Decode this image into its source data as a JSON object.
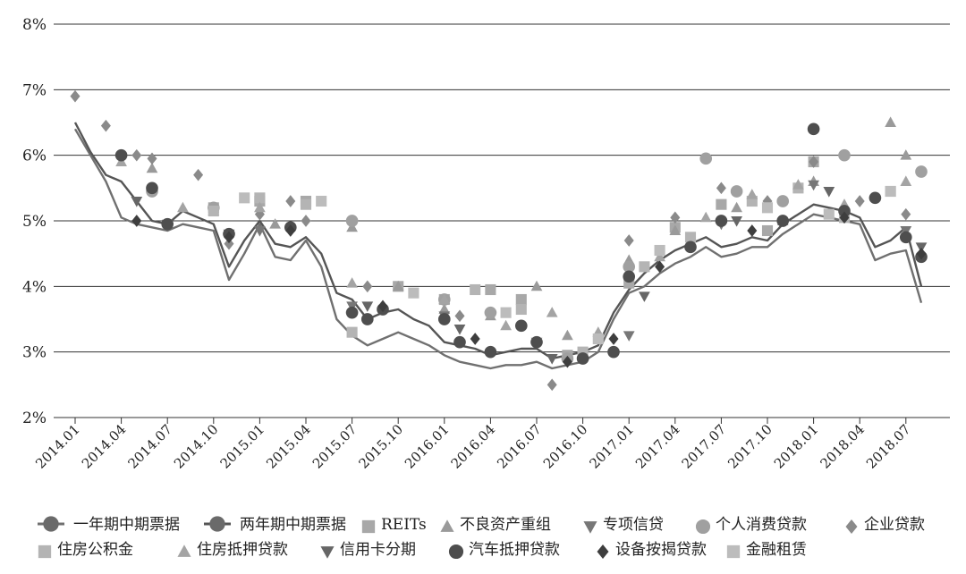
{
  "chart_data": {
    "type": "line",
    "title": "",
    "xlabel": "",
    "ylabel": "",
    "ylim": [
      2,
      8
    ],
    "grid": "horizontal",
    "legend_position": "bottom",
    "y_ticks": [
      "2%",
      "3%",
      "4%",
      "5%",
      "6%",
      "7%",
      "8%"
    ],
    "x_ticks": [
      "2014.01",
      "2014.04",
      "2014.07",
      "2014.10",
      "2015.01",
      "2015.04",
      "2015.07",
      "2015.10",
      "2016.01",
      "2016.04",
      "2016.07",
      "2016.10",
      "2017.01",
      "2017.04",
      "2017.07",
      "2017.10",
      "2018.01",
      "2018.04",
      "2018.07"
    ],
    "series": [
      {
        "name": "一年期中期票据",
        "kind": "line",
        "marker": "none",
        "color": "#707070",
        "x": [
          "2014.01",
          "2014.02",
          "2014.03",
          "2014.04",
          "2014.05",
          "2014.06",
          "2014.07",
          "2014.08",
          "2014.09",
          "2014.10",
          "2014.11",
          "2014.12",
          "2015.01",
          "2015.02",
          "2015.03",
          "2015.04",
          "2015.05",
          "2015.06",
          "2015.07",
          "2015.08",
          "2015.09",
          "2015.10",
          "2015.11",
          "2015.12",
          "2016.01",
          "2016.02",
          "2016.03",
          "2016.04",
          "2016.05",
          "2016.06",
          "2016.07",
          "2016.08",
          "2016.09",
          "2016.10",
          "2016.11",
          "2016.12",
          "2017.01",
          "2017.02",
          "2017.03",
          "2017.04",
          "2017.05",
          "2017.06",
          "2017.07",
          "2017.08",
          "2017.09",
          "2017.10",
          "2017.11",
          "2017.12",
          "2018.01",
          "2018.02",
          "2018.03",
          "2018.04",
          "2018.05",
          "2018.06",
          "2018.07",
          "2018.08"
        ],
        "values": [
          6.4,
          6.0,
          5.6,
          5.05,
          4.95,
          4.9,
          4.85,
          4.95,
          4.9,
          4.85,
          4.1,
          4.5,
          4.95,
          4.45,
          4.4,
          4.7,
          4.3,
          3.5,
          3.25,
          3.1,
          3.2,
          3.3,
          3.2,
          3.1,
          2.95,
          2.85,
          2.8,
          2.75,
          2.8,
          2.8,
          2.85,
          2.75,
          2.8,
          2.85,
          3.0,
          3.5,
          3.9,
          4.0,
          4.2,
          4.35,
          4.45,
          4.6,
          4.45,
          4.5,
          4.6,
          4.6,
          4.8,
          4.95,
          5.1,
          5.05,
          5.0,
          4.95,
          4.4,
          4.5,
          4.55,
          3.75
        ]
      },
      {
        "name": "两年期中期票据",
        "kind": "line",
        "marker": "none",
        "color": "#555555",
        "x": [
          "2014.01",
          "2014.02",
          "2014.03",
          "2014.04",
          "2014.05",
          "2014.06",
          "2014.07",
          "2014.08",
          "2014.09",
          "2014.10",
          "2014.11",
          "2014.12",
          "2015.01",
          "2015.02",
          "2015.03",
          "2015.04",
          "2015.05",
          "2015.06",
          "2015.07",
          "2015.08",
          "2015.09",
          "2015.10",
          "2015.11",
          "2015.12",
          "2016.01",
          "2016.02",
          "2016.03",
          "2016.04",
          "2016.05",
          "2016.06",
          "2016.07",
          "2016.08",
          "2016.09",
          "2016.10",
          "2016.11",
          "2016.12",
          "2017.01",
          "2017.02",
          "2017.03",
          "2017.04",
          "2017.05",
          "2017.06",
          "2017.07",
          "2017.08",
          "2017.09",
          "2017.10",
          "2017.11",
          "2017.12",
          "2018.01",
          "2018.02",
          "2018.03",
          "2018.04",
          "2018.05",
          "2018.06",
          "2018.07",
          "2018.08"
        ],
        "values": [
          6.5,
          6.05,
          5.7,
          5.6,
          5.3,
          5.0,
          4.95,
          5.15,
          5.05,
          4.95,
          4.3,
          4.7,
          5.0,
          4.65,
          4.6,
          4.75,
          4.5,
          3.9,
          3.8,
          3.5,
          3.6,
          3.65,
          3.5,
          3.4,
          3.15,
          3.1,
          3.05,
          2.95,
          3.0,
          3.05,
          3.05,
          2.9,
          2.95,
          3.0,
          3.1,
          3.6,
          3.95,
          4.2,
          4.4,
          4.55,
          4.65,
          4.75,
          4.6,
          4.65,
          4.75,
          4.7,
          4.95,
          5.1,
          5.25,
          5.2,
          5.15,
          5.05,
          4.6,
          4.7,
          4.9,
          4.0
        ]
      },
      {
        "name": "REITs",
        "kind": "scatter",
        "marker": "square",
        "color": "#a8a8a8",
        "x": [
          "2014.10",
          "2015.01",
          "2015.04",
          "2015.10",
          "2016.01",
          "2016.04",
          "2016.06",
          "2016.09",
          "2017.01",
          "2017.04",
          "2017.07",
          "2017.10",
          "2018.01"
        ],
        "values": [
          5.2,
          5.3,
          5.3,
          4.0,
          3.8,
          3.95,
          3.8,
          2.95,
          4.05,
          4.9,
          5.25,
          4.85,
          5.9
        ]
      },
      {
        "name": "不良资产重组",
        "kind": "scatter",
        "marker": "triangle-up",
        "color": "#9a9a9a",
        "x": [
          "2014.06",
          "2014.10",
          "2015.02",
          "2015.07",
          "2015.10",
          "2016.01",
          "2016.04",
          "2016.07",
          "2016.09",
          "2017.01",
          "2017.04",
          "2017.08",
          "2017.11",
          "2018.01",
          "2018.06",
          "2018.07"
        ],
        "values": [
          5.8,
          5.15,
          4.95,
          4.9,
          4.0,
          3.65,
          3.55,
          4.0,
          3.25,
          4.4,
          4.85,
          5.2,
          5.0,
          5.6,
          6.5,
          6.0
        ]
      },
      {
        "name": "专项信贷",
        "kind": "scatter",
        "marker": "triangle-down",
        "color": "#777777",
        "x": [
          "2014.07",
          "2015.01",
          "2015.07",
          "2016.01",
          "2016.07",
          "2017.01",
          "2017.07",
          "2018.01",
          "2018.07"
        ],
        "values": [
          4.95,
          4.85,
          3.7,
          3.55,
          3.15,
          3.25,
          4.95,
          5.55,
          4.85
        ]
      },
      {
        "name": "个人消费贷款",
        "kind": "scatter",
        "marker": "circle",
        "color": "#a0a0a0",
        "x": [
          "2014.06",
          "2014.10",
          "2015.07",
          "2016.01",
          "2016.04",
          "2016.09",
          "2017.01",
          "2017.06",
          "2017.08",
          "2017.11",
          "2018.03",
          "2018.08"
        ],
        "values": [
          5.45,
          5.2,
          5.0,
          3.8,
          3.6,
          2.9,
          4.3,
          5.95,
          5.45,
          5.3,
          6.0,
          5.75
        ]
      },
      {
        "name": "企业贷款",
        "kind": "scatter",
        "marker": "diamond",
        "color": "#8a8a8a",
        "x": [
          "2014.01",
          "2014.03",
          "2014.05",
          "2014.06",
          "2014.09",
          "2014.11",
          "2015.01",
          "2015.03",
          "2015.04",
          "2015.08",
          "2016.02",
          "2016.08",
          "2016.11",
          "2017.01",
          "2017.04",
          "2017.07",
          "2017.10",
          "2018.01",
          "2018.04",
          "2018.07"
        ],
        "values": [
          6.9,
          6.45,
          6.0,
          5.95,
          5.7,
          4.65,
          5.1,
          5.3,
          5.0,
          4.0,
          3.55,
          2.5,
          3.25,
          4.7,
          5.05,
          5.5,
          5.3,
          5.9,
          5.3,
          5.1
        ]
      },
      {
        "name": "住房公积金",
        "kind": "scatter",
        "marker": "square",
        "color": "#b4b4b4",
        "x": [
          "2014.10",
          "2015.01",
          "2015.04",
          "2015.07",
          "2016.03",
          "2016.06",
          "2016.10",
          "2017.02",
          "2017.05",
          "2017.09",
          "2017.12",
          "2018.03",
          "2018.06"
        ],
        "values": [
          5.15,
          5.35,
          5.25,
          3.3,
          3.95,
          3.65,
          3.0,
          4.3,
          4.75,
          5.3,
          5.5,
          5.05,
          5.45
        ]
      },
      {
        "name": "住房抵押贷款",
        "kind": "scatter",
        "marker": "triangle-up",
        "color": "#a4a4a4",
        "x": [
          "2014.04",
          "2014.08",
          "2015.01",
          "2015.07",
          "2016.01",
          "2016.05",
          "2016.08",
          "2016.11",
          "2017.03",
          "2017.06",
          "2017.09",
          "2017.12",
          "2018.03",
          "2018.07"
        ],
        "values": [
          5.9,
          5.2,
          5.2,
          4.05,
          3.8,
          3.4,
          3.6,
          3.3,
          4.45,
          5.05,
          5.4,
          5.55,
          5.25,
          5.6
        ]
      },
      {
        "name": "信用卡分期",
        "kind": "scatter",
        "marker": "triangle-down",
        "color": "#666666",
        "x": [
          "2014.05",
          "2014.11",
          "2015.08",
          "2016.02",
          "2016.08",
          "2017.02",
          "2017.08",
          "2018.02",
          "2018.08"
        ],
        "values": [
          5.3,
          4.8,
          3.7,
          3.35,
          2.9,
          3.85,
          5.0,
          5.45,
          4.6
        ]
      },
      {
        "name": "汽车抵押贷款",
        "kind": "scatter",
        "marker": "circle",
        "color": "#4e4e4e",
        "x": [
          "2014.04",
          "2014.06",
          "2014.07",
          "2014.11",
          "2015.03",
          "2015.07",
          "2015.08",
          "2015.09",
          "2016.01",
          "2016.02",
          "2016.04",
          "2016.06",
          "2016.07",
          "2016.10",
          "2016.12",
          "2017.01",
          "2017.05",
          "2017.07",
          "2017.11",
          "2018.01",
          "2018.03",
          "2018.05",
          "2018.07",
          "2018.08"
        ],
        "values": [
          6.0,
          5.5,
          4.95,
          4.8,
          4.9,
          3.6,
          3.5,
          3.65,
          3.5,
          3.15,
          3.0,
          3.4,
          3.15,
          2.9,
          3.0,
          4.15,
          4.6,
          5.0,
          5.0,
          6.4,
          5.15,
          5.35,
          4.75,
          4.45
        ]
      },
      {
        "name": "设备按揭贷款",
        "kind": "scatter",
        "marker": "diamond",
        "color": "#3e3e3e",
        "x": [
          "2014.05",
          "2014.11",
          "2015.03",
          "2015.09",
          "2016.03",
          "2016.09",
          "2016.12",
          "2017.03",
          "2017.09",
          "2018.03",
          "2018.08"
        ],
        "values": [
          5.0,
          4.75,
          4.85,
          3.7,
          3.2,
          2.85,
          3.2,
          4.3,
          4.85,
          5.05,
          4.5
        ]
      },
      {
        "name": "金融租赁",
        "kind": "scatter",
        "marker": "square",
        "color": "#bcbcbc",
        "x": [
          "2014.12",
          "2015.05",
          "2015.11",
          "2016.05",
          "2016.11",
          "2017.03",
          "2017.10",
          "2018.02",
          "2018.06"
        ],
        "values": [
          5.35,
          5.3,
          3.9,
          3.6,
          3.2,
          4.55,
          5.2,
          5.1,
          5.45
        ]
      }
    ]
  }
}
